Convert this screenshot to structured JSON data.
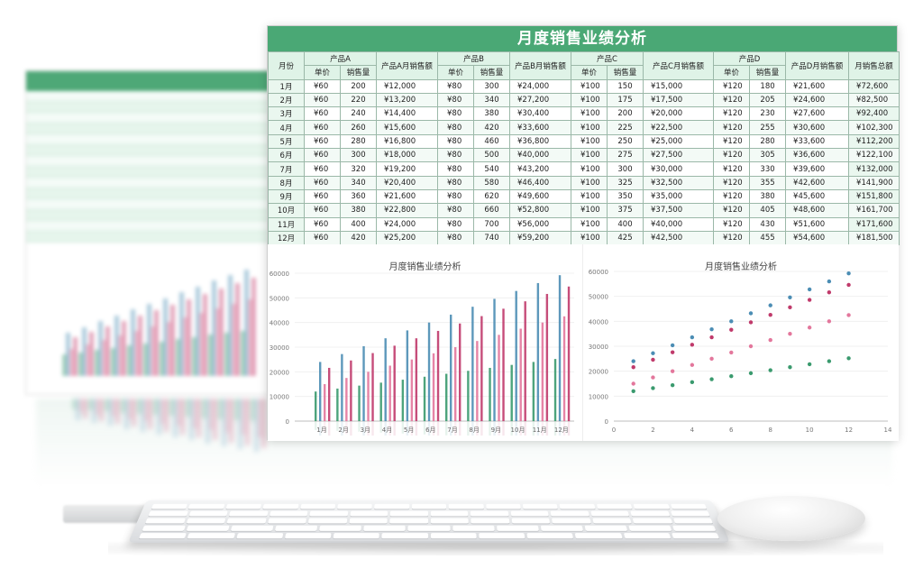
{
  "sheet": {
    "title": "月度销售业绩分析",
    "headers": {
      "month": "月份",
      "productA": "产品A",
      "productB": "产品B",
      "productC": "产品C",
      "productD": "产品D",
      "unit_price": "单价",
      "volume": "销售量",
      "salesA": "产品A月销售额",
      "salesB": "产品B月销售额",
      "salesC": "产品C月销售额",
      "salesD": "产品D月销售额",
      "total": "月销售总额"
    },
    "rows": [
      [
        "1月",
        "¥60",
        "200",
        "¥12,000",
        "¥80",
        "300",
        "¥24,000",
        "¥100",
        "150",
        "¥15,000",
        "¥120",
        "180",
        "¥21,600",
        "¥72,600"
      ],
      [
        "2月",
        "¥60",
        "220",
        "¥13,200",
        "¥80",
        "340",
        "¥27,200",
        "¥100",
        "175",
        "¥17,500",
        "¥120",
        "205",
        "¥24,600",
        "¥82,500"
      ],
      [
        "3月",
        "¥60",
        "240",
        "¥14,400",
        "¥80",
        "380",
        "¥30,400",
        "¥100",
        "200",
        "¥20,000",
        "¥120",
        "230",
        "¥27,600",
        "¥92,400"
      ],
      [
        "4月",
        "¥60",
        "260",
        "¥15,600",
        "¥80",
        "420",
        "¥33,600",
        "¥100",
        "225",
        "¥22,500",
        "¥120",
        "255",
        "¥30,600",
        "¥102,300"
      ],
      [
        "5月",
        "¥60",
        "280",
        "¥16,800",
        "¥80",
        "460",
        "¥36,800",
        "¥100",
        "250",
        "¥25,000",
        "¥120",
        "280",
        "¥33,600",
        "¥112,200"
      ],
      [
        "6月",
        "¥60",
        "300",
        "¥18,000",
        "¥80",
        "500",
        "¥40,000",
        "¥100",
        "275",
        "¥27,500",
        "¥120",
        "305",
        "¥36,600",
        "¥122,100"
      ],
      [
        "7月",
        "¥60",
        "320",
        "¥19,200",
        "¥80",
        "540",
        "¥43,200",
        "¥100",
        "300",
        "¥30,000",
        "¥120",
        "330",
        "¥39,600",
        "¥132,000"
      ],
      [
        "8月",
        "¥60",
        "340",
        "¥20,400",
        "¥80",
        "580",
        "¥46,400",
        "¥100",
        "325",
        "¥32,500",
        "¥120",
        "355",
        "¥42,600",
        "¥141,900"
      ],
      [
        "9月",
        "¥60",
        "360",
        "¥21,600",
        "¥80",
        "620",
        "¥49,600",
        "¥100",
        "350",
        "¥35,000",
        "¥120",
        "380",
        "¥45,600",
        "¥151,800"
      ],
      [
        "10月",
        "¥60",
        "380",
        "¥22,800",
        "¥80",
        "660",
        "¥52,800",
        "¥100",
        "375",
        "¥37,500",
        "¥120",
        "405",
        "¥48,600",
        "¥161,700"
      ],
      [
        "11月",
        "¥60",
        "400",
        "¥24,000",
        "¥80",
        "700",
        "¥56,000",
        "¥100",
        "400",
        "¥40,000",
        "¥120",
        "430",
        "¥51,600",
        "¥171,600"
      ],
      [
        "12月",
        "¥60",
        "420",
        "¥25,200",
        "¥80",
        "740",
        "¥59,200",
        "¥100",
        "425",
        "¥42,500",
        "¥120",
        "455",
        "¥54,600",
        "¥181,500"
      ]
    ]
  },
  "colors": {
    "productA": "#3a9a6e",
    "productB": "#4b8db4",
    "productC": "#e3779c",
    "productD": "#c03a6b",
    "header_green": "#4aa875"
  },
  "chart_data": [
    {
      "type": "bar",
      "title": "月度销售业绩分析",
      "categories": [
        "1月",
        "2月",
        "3月",
        "4月",
        "5月",
        "6月",
        "7月",
        "8月",
        "9月",
        "10月",
        "11月",
        "12月"
      ],
      "series": [
        {
          "name": "产品A月销售额",
          "values": [
            12000,
            13200,
            14400,
            15600,
            16800,
            18000,
            19200,
            20400,
            21600,
            22800,
            24000,
            25200
          ]
        },
        {
          "name": "产品B月销售额",
          "values": [
            24000,
            27200,
            30400,
            33600,
            36800,
            40000,
            43200,
            46400,
            49600,
            52800,
            56000,
            59200
          ]
        },
        {
          "name": "产品C月销售额",
          "values": [
            15000,
            17500,
            20000,
            22500,
            25000,
            27500,
            30000,
            32500,
            35000,
            37500,
            40000,
            42500
          ]
        },
        {
          "name": "产品D月销售额",
          "values": [
            21600,
            24600,
            27600,
            30600,
            33600,
            36600,
            39600,
            42600,
            45600,
            48600,
            51600,
            54600
          ]
        }
      ],
      "ylim": [
        0,
        60000
      ],
      "yticks": [
        "0",
        "10000",
        "20000",
        "30000",
        "40000",
        "50000",
        "60000"
      ]
    },
    {
      "type": "scatter",
      "title": "月度销售业绩分析",
      "x": [
        1,
        2,
        3,
        4,
        5,
        6,
        7,
        8,
        9,
        10,
        11,
        12
      ],
      "series": [
        {
          "name": "产品A月销售额",
          "values": [
            12000,
            13200,
            14400,
            15600,
            16800,
            18000,
            19200,
            20400,
            21600,
            22800,
            24000,
            25200
          ]
        },
        {
          "name": "产品B月销售额",
          "values": [
            24000,
            27200,
            30400,
            33600,
            36800,
            40000,
            43200,
            46400,
            49600,
            52800,
            56000,
            59200
          ]
        },
        {
          "name": "产品C月销售额",
          "values": [
            15000,
            17500,
            20000,
            22500,
            25000,
            27500,
            30000,
            32500,
            35000,
            37500,
            40000,
            42500
          ]
        },
        {
          "name": "产品D月销售额",
          "values": [
            21600,
            24600,
            27600,
            30600,
            33600,
            36600,
            39600,
            42600,
            45600,
            48600,
            51600,
            54600
          ]
        }
      ],
      "xlim": [
        0,
        14
      ],
      "ylim": [
        0,
        60000
      ],
      "xticks": [
        "0",
        "2",
        "4",
        "6",
        "8",
        "10",
        "12",
        "14"
      ],
      "yticks": [
        "0",
        "10000",
        "20000",
        "30000",
        "40000",
        "50000",
        "60000"
      ]
    }
  ]
}
